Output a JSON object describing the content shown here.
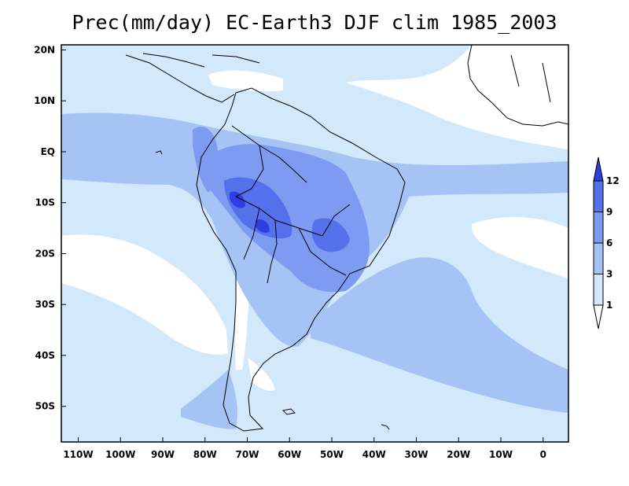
{
  "title": "Prec(mm/day) EC-Earth3 DJF clim 1985_2003",
  "axes": {
    "x_ticks": [
      {
        "lon": -110,
        "label": "110W"
      },
      {
        "lon": -100,
        "label": "100W"
      },
      {
        "lon": -90,
        "label": "90W"
      },
      {
        "lon": -80,
        "label": "80W"
      },
      {
        "lon": -70,
        "label": "70W"
      },
      {
        "lon": -60,
        "label": "60W"
      },
      {
        "lon": -50,
        "label": "50W"
      },
      {
        "lon": -40,
        "label": "40W"
      },
      {
        "lon": -30,
        "label": "30W"
      },
      {
        "lon": -20,
        "label": "20W"
      },
      {
        "lon": -10,
        "label": "10W"
      },
      {
        "lon": 0,
        "label": "0"
      }
    ],
    "y_ticks": [
      {
        "lat": 20,
        "label": "20N"
      },
      {
        "lat": 10,
        "label": "10N"
      },
      {
        "lat": 0,
        "label": "EQ"
      },
      {
        "lat": -10,
        "label": "10S"
      },
      {
        "lat": -20,
        "label": "20S"
      },
      {
        "lat": -30,
        "label": "30S"
      },
      {
        "lat": -40,
        "label": "40S"
      },
      {
        "lat": -50,
        "label": "50S"
      }
    ],
    "lon_range": [
      -114,
      6
    ],
    "lat_range": [
      -57,
      21
    ]
  },
  "colorbar": {
    "levels": [
      "1",
      "3",
      "6",
      "9",
      "12"
    ],
    "colors": [
      "#ffffff",
      "#d2e8fb",
      "#a6c3f5",
      "#7d9bf0",
      "#5470ea",
      "#2d3ee2"
    ]
  },
  "colors": {
    "ocean_base": "#d2e8fb",
    "dry": "#ffffff",
    "level_3": "#a6c3f5",
    "level_6": "#7d9bf0",
    "level_9": "#5470ea",
    "level_12": "#2d3ee2",
    "coast": "#000000"
  }
}
